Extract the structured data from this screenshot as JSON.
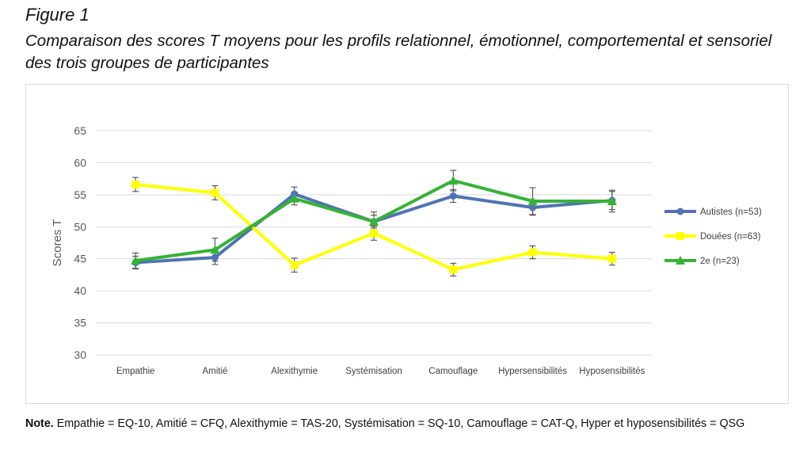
{
  "figure": {
    "label": "Figure 1",
    "title": "Comparaison des scores T moyens pour les profils relationnel, émotionnel, comportemental et sensoriel des trois groupes de participantes"
  },
  "note": {
    "prefix": "Note.",
    "text": "Empathie = EQ-10, Amitié = CFQ, Alexithymie = TAS-20, Systémisation = SQ-10, Camouflage = CAT-Q, Hyper et hyposensibilités = QSG"
  },
  "chart_data": {
    "type": "line",
    "title": "",
    "xlabel": "",
    "ylabel": "Scores T",
    "ylim": [
      30,
      65
    ],
    "yticks": [
      30,
      35,
      40,
      45,
      50,
      55,
      60,
      65
    ],
    "grid": true,
    "legend_position": "right",
    "categories": [
      "Empathie",
      "Amitié",
      "Alexithymie",
      "Systémisation",
      "Camouflage",
      "Hypersensibilités",
      "Hyposensibilités"
    ],
    "series": [
      {
        "name": "Autistes (n=53)",
        "color": "#4f73b3",
        "marker": "circle",
        "values": [
          44.4,
          45.2,
          55.1,
          50.8,
          54.8,
          53.0,
          54.1
        ],
        "error": [
          1.0,
          1.1,
          1.1,
          1.0,
          1.0,
          1.2,
          1.4
        ]
      },
      {
        "name": "Douées (n=63)",
        "color": "#ffff00",
        "marker": "square",
        "values": [
          56.6,
          55.3,
          44.0,
          49.0,
          43.3,
          46.0,
          45.0
        ],
        "error": [
          1.1,
          1.1,
          1.1,
          1.1,
          1.0,
          1.0,
          1.0
        ]
      },
      {
        "name": "2e (n=23)",
        "color": "#35b335",
        "marker": "triangle",
        "values": [
          44.7,
          46.4,
          54.4,
          50.8,
          57.2,
          54.0,
          54.0
        ],
        "error": [
          1.2,
          1.8,
          1.0,
          1.5,
          1.6,
          2.1,
          1.7
        ]
      }
    ]
  }
}
